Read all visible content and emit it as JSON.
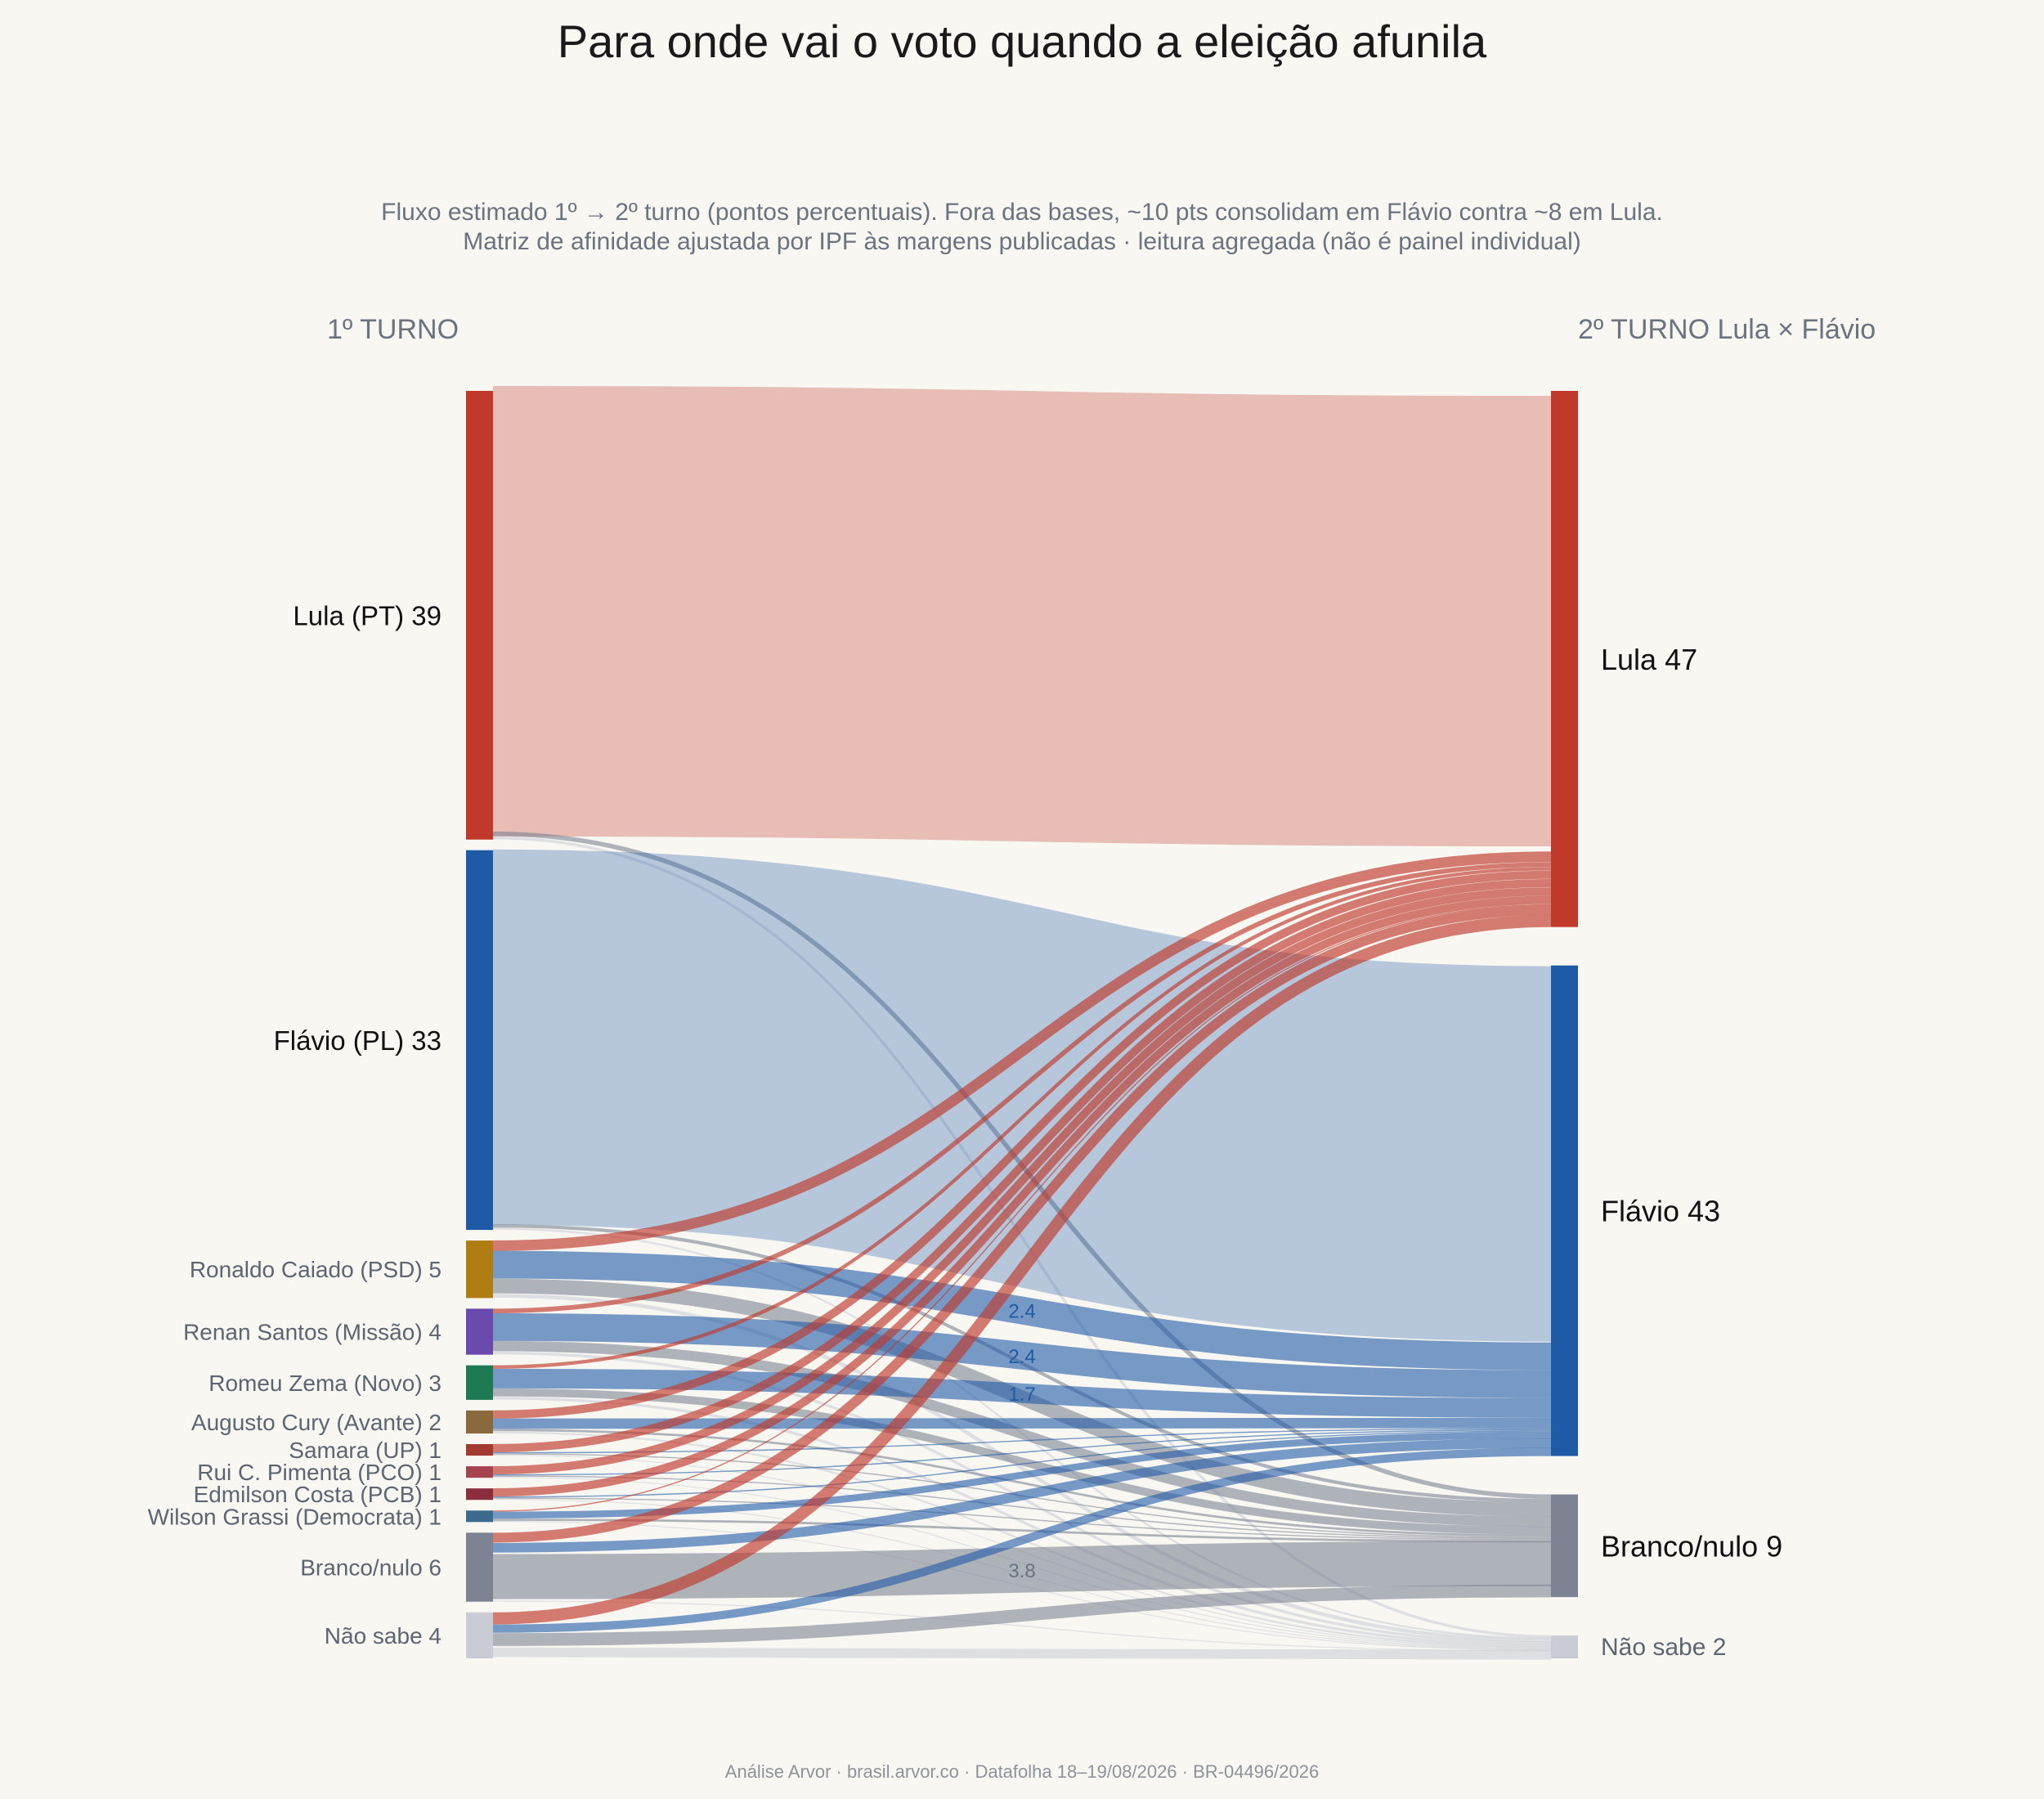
{
  "title": "Para onde vai o voto quando a eleição afunila",
  "subtitle_line1": "Fluxo estimado 1º → 2º turno (pontos percentuais). Fora das bases, ~10 pts consolidam em Flávio contra ~8 em Lula.",
  "subtitle_line2": "Matriz de afinidade ajustada por IPF às margens publicadas · leitura agregada (não é painel individual)",
  "left_header": "1º TURNO",
  "right_header": "2º TURNO  Lula × Flávio",
  "footer": "Análise Arvor · brasil.arvor.co · Datafolha 18–19/08/2026 · BR-04496/2026",
  "chart_data": {
    "type": "sankey",
    "units": "pontos percentuais",
    "sources": [
      {
        "id": "lula1",
        "label": "Lula (PT)",
        "value": 39,
        "color": "#c0392b",
        "major": true
      },
      {
        "id": "flavio1",
        "label": "Flávio (PL)",
        "value": 33,
        "color": "#1f5aa6",
        "major": true
      },
      {
        "id": "caiado",
        "label": "Ronaldo Caiado (PSD)",
        "value": 5,
        "color": "#b07d12"
      },
      {
        "id": "renan",
        "label": "Renan Santos (Missão)",
        "value": 4,
        "color": "#6b4aad"
      },
      {
        "id": "zema",
        "label": "Romeu Zema (Novo)",
        "value": 3,
        "color": "#1e7a52"
      },
      {
        "id": "cury",
        "label": "Augusto Cury (Avante)",
        "value": 2,
        "color": "#8a6a3c"
      },
      {
        "id": "samara",
        "label": "Samara (UP)",
        "value": 1,
        "color": "#a33a32"
      },
      {
        "id": "pimenta",
        "label": "Rui C. Pimenta (PCO)",
        "value": 1,
        "color": "#a7434f"
      },
      {
        "id": "edmilson",
        "label": "Edmilson Costa (PCB)",
        "value": 1,
        "color": "#8a2e3d"
      },
      {
        "id": "grassi",
        "label": "Wilson Grassi (Democrata)",
        "value": 1,
        "color": "#3d6a8f"
      },
      {
        "id": "branco1",
        "label": "Branco/nulo",
        "value": 6,
        "color": "#7d8393"
      },
      {
        "id": "naosabe1",
        "label": "Não sabe",
        "value": 4,
        "color": "#c9ccd5"
      }
    ],
    "targets": [
      {
        "id": "lula2",
        "label": "Lula",
        "value": 47,
        "color": "#c0392b",
        "major": true
      },
      {
        "id": "flavio2",
        "label": "Flávio",
        "value": 43,
        "color": "#1f5aa6",
        "major": true
      },
      {
        "id": "branco2",
        "label": "Branco/nulo",
        "value": 9,
        "color": "#7d8393",
        "major": true
      },
      {
        "id": "naosabe2",
        "label": "Não sabe",
        "value": 2,
        "color": "#c9ccd5",
        "major": false
      }
    ],
    "flows": [
      {
        "source": "lula1",
        "target": "lula2",
        "value": 38.3
      },
      {
        "source": "lula1",
        "target": "naosabe2",
        "value": 0.3
      },
      {
        "source": "lula1",
        "target": "branco2",
        "value": 0.4
      },
      {
        "source": "flavio1",
        "target": "flavio2",
        "value": 32.5
      },
      {
        "source": "flavio1",
        "target": "branco2",
        "value": 0.3
      },
      {
        "source": "flavio1",
        "target": "naosabe2",
        "value": 0.2
      },
      {
        "source": "caiado",
        "target": "lula2",
        "value": 0.9
      },
      {
        "source": "caiado",
        "target": "flavio2",
        "value": 2.4,
        "label": "2.4"
      },
      {
        "source": "caiado",
        "target": "branco2",
        "value": 1.3
      },
      {
        "source": "caiado",
        "target": "naosabe2",
        "value": 0.4
      },
      {
        "source": "renan",
        "target": "lula2",
        "value": 0.4
      },
      {
        "source": "renan",
        "target": "flavio2",
        "value": 2.4,
        "label": "2.4"
      },
      {
        "source": "renan",
        "target": "branco2",
        "value": 0.9
      },
      {
        "source": "renan",
        "target": "naosabe2",
        "value": 0.3
      },
      {
        "source": "zema",
        "target": "lula2",
        "value": 0.3
      },
      {
        "source": "zema",
        "target": "flavio2",
        "value": 1.7,
        "label": "1.7"
      },
      {
        "source": "zema",
        "target": "branco2",
        "value": 0.7
      },
      {
        "source": "zema",
        "target": "naosabe2",
        "value": 0.3
      },
      {
        "source": "cury",
        "target": "lula2",
        "value": 0.7
      },
      {
        "source": "cury",
        "target": "flavio2",
        "value": 0.9
      },
      {
        "source": "cury",
        "target": "branco2",
        "value": 0.2
      },
      {
        "source": "cury",
        "target": "naosabe2",
        "value": 0.2
      },
      {
        "source": "samara",
        "target": "lula2",
        "value": 0.7
      },
      {
        "source": "samara",
        "target": "flavio2",
        "value": 0.1
      },
      {
        "source": "samara",
        "target": "branco2",
        "value": 0.1
      },
      {
        "source": "samara",
        "target": "naosabe2",
        "value": 0.1
      },
      {
        "source": "pimenta",
        "target": "lula2",
        "value": 0.7
      },
      {
        "source": "pimenta",
        "target": "flavio2",
        "value": 0.1
      },
      {
        "source": "pimenta",
        "target": "branco2",
        "value": 0.1
      },
      {
        "source": "pimenta",
        "target": "naosabe2",
        "value": 0.1
      },
      {
        "source": "edmilson",
        "target": "lula2",
        "value": 0.7
      },
      {
        "source": "edmilson",
        "target": "flavio2",
        "value": 0.1
      },
      {
        "source": "edmilson",
        "target": "branco2",
        "value": 0.1
      },
      {
        "source": "edmilson",
        "target": "naosabe2",
        "value": 0.1
      },
      {
        "source": "grassi",
        "target": "lula2",
        "value": 0.1
      },
      {
        "source": "grassi",
        "target": "flavio2",
        "value": 0.6
      },
      {
        "source": "grassi",
        "target": "branco2",
        "value": 0.2
      },
      {
        "source": "grassi",
        "target": "naosabe2",
        "value": 0.1
      },
      {
        "source": "branco1",
        "target": "lula2",
        "value": 0.8
      },
      {
        "source": "branco1",
        "target": "flavio2",
        "value": 0.8
      },
      {
        "source": "branco1",
        "target": "branco2",
        "value": 3.8,
        "label": "3.8"
      },
      {
        "source": "branco1",
        "target": "naosabe2",
        "value": 0.1
      },
      {
        "source": "naosabe1",
        "target": "lula2",
        "value": 1.0
      },
      {
        "source": "naosabe1",
        "target": "flavio2",
        "value": 0.7
      },
      {
        "source": "naosabe1",
        "target": "branco2",
        "value": 1.1
      },
      {
        "source": "naosabe1",
        "target": "naosabe2",
        "value": 1.0
      }
    ]
  }
}
